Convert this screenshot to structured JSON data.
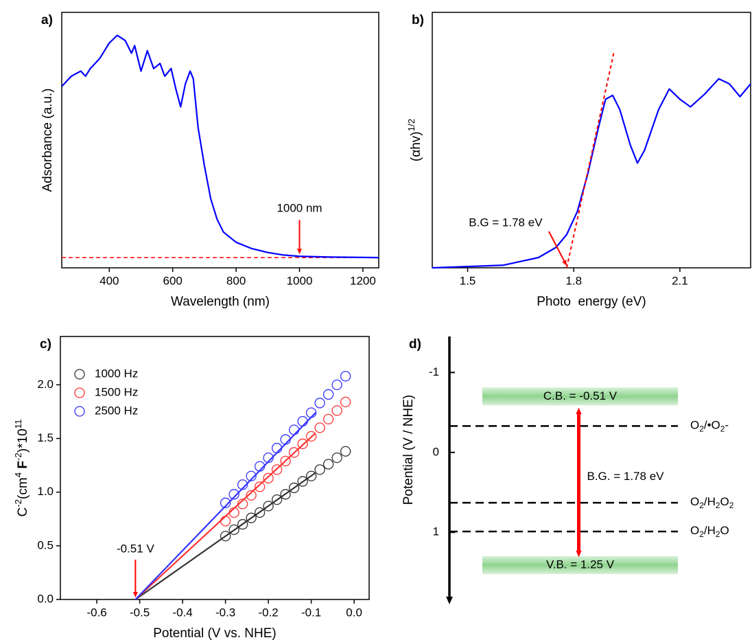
{
  "chart_data": [
    {
      "type": "line",
      "panel_label": "a)",
      "x_label": "Wavelength (nm)",
      "y_label": [
        {
          "text": "Adsorbance (a.u.)"
        }
      ],
      "x": [
        250,
        280,
        310,
        325,
        340,
        370,
        400,
        425,
        450,
        470,
        480,
        500,
        520,
        540,
        560,
        575,
        595,
        610,
        625,
        640,
        655,
        665,
        680,
        700,
        720,
        740,
        760,
        800,
        850,
        900,
        950,
        1000,
        1100,
        1250
      ],
      "values": [
        0.71,
        0.75,
        0.77,
        0.75,
        0.78,
        0.82,
        0.88,
        0.91,
        0.89,
        0.84,
        0.87,
        0.77,
        0.85,
        0.78,
        0.8,
        0.75,
        0.78,
        0.7,
        0.63,
        0.72,
        0.77,
        0.74,
        0.55,
        0.4,
        0.27,
        0.19,
        0.14,
        0.1,
        0.075,
        0.06,
        0.05,
        0.045,
        0.042,
        0.04
      ],
      "color": "#0000ff",
      "xlim": [
        250,
        1250
      ],
      "ylim": [
        0,
        1
      ],
      "xticks": [
        400,
        600,
        800,
        1000,
        1200
      ],
      "baseline": {
        "value": 0.04,
        "color": "#ff0000"
      },
      "annotations": [
        {
          "text": "1000 nm",
          "x": 1000,
          "y": 0.045,
          "color": "#ff0000"
        }
      ]
    },
    {
      "type": "line",
      "panel_label": "b)",
      "x_label": "Photo  energy (eV)",
      "y_label": [
        {
          "text": "(αhv)"
        },
        {
          "text": "1/2",
          "sup": true
        }
      ],
      "x": [
        1.4,
        1.6,
        1.7,
        1.75,
        1.78,
        1.81,
        1.84,
        1.87,
        1.89,
        1.91,
        1.93,
        1.96,
        1.98,
        2.0,
        2.04,
        2.07,
        2.1,
        2.13,
        2.17,
        2.21,
        2.24,
        2.27,
        2.3
      ],
      "values": [
        0.0,
        0.01,
        0.04,
        0.08,
        0.13,
        0.22,
        0.37,
        0.55,
        0.66,
        0.675,
        0.62,
        0.48,
        0.41,
        0.46,
        0.62,
        0.7,
        0.66,
        0.63,
        0.68,
        0.74,
        0.72,
        0.67,
        0.72
      ],
      "color": "#0000ff",
      "xlim": [
        1.4,
        2.3
      ],
      "ylim": [
        0,
        1
      ],
      "xticks": [
        1.5,
        1.8,
        2.1
      ],
      "tangent": {
        "x": [
          1.78,
          1.913
        ],
        "values": [
          0,
          0.84
        ],
        "color": "#ff0000"
      },
      "annotations": [
        {
          "text": "B.G = 1.78 eV",
          "x": 1.78,
          "y": 0,
          "color": "#ff0000"
        }
      ]
    },
    {
      "type": "scatter",
      "panel_label": "c)",
      "x_label": "Potential (V vs. NHE)",
      "y_label": [
        {
          "text": "C"
        },
        {
          "text": "-2",
          "sup": true
        },
        {
          "text": "(cm"
        },
        {
          "text": "4",
          "sup": true
        },
        {
          "text": " F",
          "bold": true
        },
        {
          "text": "-2",
          "sup": true
        },
        {
          "text": ")*10"
        },
        {
          "text": "11",
          "sup": true
        }
      ],
      "x": [
        -0.3,
        -0.28,
        -0.26,
        -0.24,
        -0.22,
        -0.2,
        -0.18,
        -0.16,
        -0.14,
        -0.12,
        -0.1,
        -0.08,
        -0.06,
        -0.04,
        -0.02
      ],
      "series": [
        {
          "name": "1000 Hz",
          "color": "#333333",
          "values": [
            0.59,
            0.65,
            0.7,
            0.76,
            0.81,
            0.87,
            0.93,
            0.98,
            1.04,
            1.1,
            1.15,
            1.21,
            1.26,
            1.32,
            1.38
          ],
          "fit": {
            "x": [
              -0.51,
              -0.09
            ],
            "values": [
              0,
              1.18
            ]
          }
        },
        {
          "name": "1500 Hz",
          "color": "#ff3333",
          "values": [
            0.73,
            0.81,
            0.89,
            0.97,
            1.05,
            1.13,
            1.21,
            1.29,
            1.37,
            1.45,
            1.52,
            1.6,
            1.68,
            1.76,
            1.84
          ],
          "fit": {
            "x": [
              -0.51,
              -0.09
            ],
            "values": [
              0,
              1.55
            ]
          }
        },
        {
          "name": "2500 Hz",
          "color": "#3333ff",
          "values": [
            0.9,
            0.98,
            1.07,
            1.15,
            1.24,
            1.32,
            1.41,
            1.49,
            1.58,
            1.66,
            1.74,
            1.83,
            1.91,
            2.0,
            2.08
          ],
          "fit": {
            "x": [
              -0.51,
              -0.09
            ],
            "values": [
              0,
              1.74
            ]
          }
        }
      ],
      "xlim": [
        -0.685,
        0.035
      ],
      "ylim": [
        0,
        2.45
      ],
      "xticks": [
        -0.6,
        -0.5,
        -0.4,
        -0.3,
        -0.2,
        -0.1,
        {
          "value": 0,
          "label": "0.0"
        }
      ],
      "yticks": [
        {
          "value": 0,
          "label": "0.0"
        },
        0.5,
        {
          "value": 1,
          "label": "1.0"
        },
        1.5,
        {
          "value": 2,
          "label": "2.0"
        }
      ],
      "legend": "top-left",
      "annotations": [
        {
          "text": "-0.51 V",
          "x": -0.51,
          "y": 0,
          "color": "#ff0000"
        }
      ]
    },
    {
      "type": "level",
      "panel_label": "d)",
      "y_label": [
        {
          "text": "Potential (V / NHE)"
        }
      ],
      "ylim": [
        -1.45,
        1.9
      ],
      "inverted": true,
      "yticks": [
        -1,
        0,
        1
      ],
      "bands": [
        {
          "label": "C.B. = -0.51 V",
          "value": -0.7,
          "color": "#8fd48f"
        },
        {
          "label": "V.B. = 1.25 V",
          "value": 1.41,
          "color": "#8fd48f"
        }
      ],
      "levels": [
        {
          "label": [
            {
              "text": "O"
            },
            {
              "text": "2",
              "sub": true
            },
            {
              "text": "/•O"
            },
            {
              "text": "2",
              "sub": true
            },
            {
              "text": "-"
            }
          ],
          "value": -0.33
        },
        {
          "label": [
            {
              "text": "O"
            },
            {
              "text": "2",
              "sub": true
            },
            {
              "text": "/H"
            },
            {
              "text": "2",
              "sub": true
            },
            {
              "text": "O"
            },
            {
              "text": "2",
              "sub": true
            }
          ],
          "value": 0.63
        },
        {
          "label": [
            {
              "text": "O"
            },
            {
              "text": "2",
              "sub": true
            },
            {
              "text": "/H"
            },
            {
              "text": "2",
              "sub": true
            },
            {
              "text": "O"
            }
          ],
          "value": 0.99
        }
      ],
      "gap": {
        "label": "B.G. = 1.78 eV",
        "from": -0.56,
        "to": 1.31,
        "color": "#ff0000"
      }
    }
  ]
}
